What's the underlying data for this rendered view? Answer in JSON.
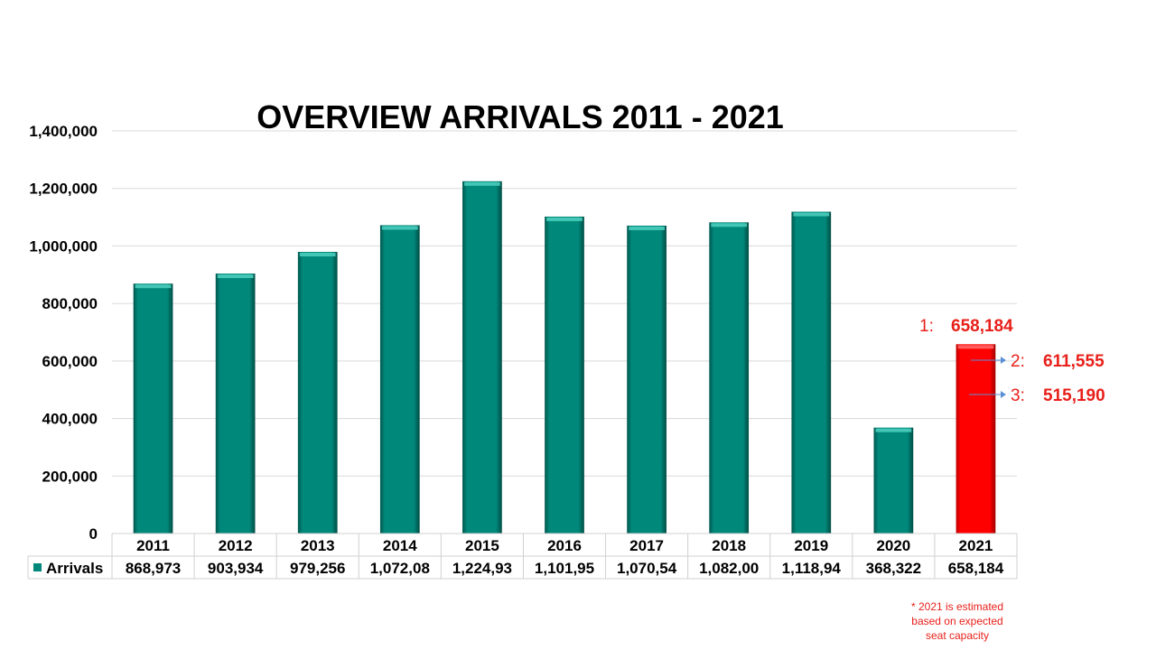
{
  "chart_data": {
    "type": "bar",
    "title": "OVERVIEW ARRIVALS 2011 - 2021",
    "xlabel": "",
    "ylabel": "",
    "ylim": [
      0,
      1400000
    ],
    "yticks": [
      "0",
      "200,000",
      "400,000",
      "600,000",
      "800,000",
      "1,000,000",
      "1,200,000",
      "1,400,000"
    ],
    "ytick_values": [
      0,
      200000,
      400000,
      600000,
      800000,
      1000000,
      1200000,
      1400000
    ],
    "grid": true,
    "categories": [
      "2011",
      "2012",
      "2013",
      "2014",
      "2015",
      "2016",
      "2017",
      "2018",
      "2019",
      "2020",
      "2021"
    ],
    "series": [
      {
        "name": "Arrivals",
        "values": [
          868973,
          903934,
          979256,
          1072080,
          1224930,
          1101950,
          1070540,
          1082000,
          1118940,
          368322,
          658184
        ],
        "table_labels": [
          "868,973",
          "903,934",
          "979,256",
          "1,072,08",
          "1,224,93",
          "1,101,95",
          "1,070,54",
          "1,082,00",
          "1,118,94",
          "368,322",
          "658,184"
        ],
        "color": "#00897B",
        "highlight_color": "#FF0000",
        "highlight_category": "2021"
      }
    ],
    "data_table": true,
    "legend": "data-table-left",
    "annotations": [
      {
        "label": "1:",
        "value": "658,184"
      },
      {
        "label": "2:",
        "value": "611,555"
      },
      {
        "label": "3:",
        "value": "515,190"
      }
    ],
    "footnote": [
      "* 2021 is estimated",
      "based on expected",
      "seat capacity"
    ],
    "annotation_color": "#E8201A",
    "arrow_color": "#5B8FD6"
  }
}
